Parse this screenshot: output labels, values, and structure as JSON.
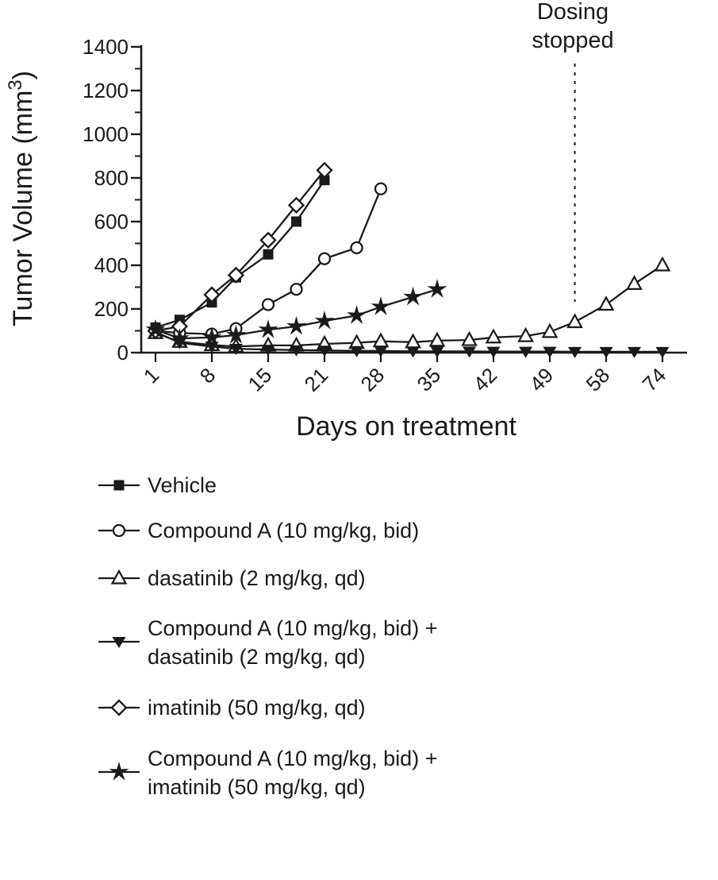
{
  "colors": {
    "ink": "#1a1a1a",
    "background": "#ffffff"
  },
  "chart_data": {
    "type": "line",
    "title": "",
    "xlabel": "Days on treatment",
    "ylabel": "Tumor Volume (mm3)",
    "ylabel_parts": {
      "main": "Tumor Volume (mm",
      "superscript": "3",
      "suffix": ")"
    },
    "x_tick_days": [
      1,
      8,
      15,
      21,
      28,
      35,
      42,
      49,
      58,
      74
    ],
    "x_tick_labels": [
      "1",
      "8",
      "15",
      "21",
      "28",
      "35",
      "42",
      "49",
      "58",
      "74"
    ],
    "y_ticks": [
      0,
      200,
      400,
      600,
      800,
      1000,
      1200,
      1400
    ],
    "y_minor_ticks": [
      100,
      300,
      500,
      700,
      900,
      1100,
      1300
    ],
    "ylim": [
      0,
      1400
    ],
    "grid": "off",
    "legend_position": "below",
    "annotation": {
      "text_lines": [
        "Dosing",
        "stopped"
      ],
      "at_day": 53,
      "line_style": "dashed-vertical"
    },
    "series": [
      {
        "name": "Vehicle",
        "marker": "square-filled",
        "days": [
          1,
          4,
          8,
          11,
          15,
          18,
          21
        ],
        "values": [
          115,
          150,
          230,
          345,
          450,
          600,
          790
        ]
      },
      {
        "name": "Compound A (10 mg/kg, bid)",
        "marker": "circle-open",
        "days": [
          1,
          4,
          8,
          11,
          15,
          18,
          21,
          25,
          28
        ],
        "values": [
          100,
          90,
          85,
          110,
          220,
          290,
          430,
          480,
          750
        ]
      },
      {
        "name": "dasatinib (2 mg/kg, qd)",
        "marker": "triangle-up-open",
        "days": [
          1,
          4,
          8,
          11,
          15,
          18,
          21,
          25,
          28,
          32,
          35,
          39,
          42,
          46,
          49,
          53,
          58,
          66,
          74
        ],
        "values": [
          90,
          50,
          35,
          28,
          33,
          33,
          40,
          45,
          52,
          48,
          55,
          58,
          70,
          76,
          95,
          140,
          220,
          315,
          400
        ]
      },
      {
        "name": "Compound A (10 mg/kg, bid) + dasatinib (2 mg/kg, qd)",
        "marker": "triangle-down-filled",
        "days": [
          1,
          4,
          8,
          11,
          15,
          18,
          21,
          25,
          28,
          32,
          35,
          39,
          42,
          46,
          49,
          53,
          58,
          66,
          74
        ],
        "values": [
          95,
          45,
          28,
          18,
          14,
          12,
          10,
          8,
          8,
          6,
          6,
          6,
          5,
          5,
          5,
          4,
          4,
          4,
          4
        ]
      },
      {
        "name": "imatinib (50 mg/kg, qd)",
        "marker": "diamond-open",
        "days": [
          1,
          4,
          8,
          11,
          15,
          18,
          21
        ],
        "values": [
          100,
          120,
          265,
          355,
          515,
          675,
          835
        ]
      },
      {
        "name": "Compound A (10 mg/kg, bid) + imatinib (50 mg/kg, qd)",
        "marker": "star-filled",
        "days": [
          1,
          4,
          8,
          11,
          15,
          18,
          21,
          25,
          28,
          32,
          35
        ],
        "values": [
          105,
          65,
          70,
          80,
          105,
          120,
          145,
          170,
          210,
          255,
          290
        ]
      }
    ]
  },
  "legend": {
    "items": [
      {
        "marker": "square-filled",
        "lines": [
          "Vehicle"
        ]
      },
      {
        "marker": "circle-open",
        "lines": [
          "Compound A (10 mg/kg, bid)"
        ]
      },
      {
        "marker": "triangle-up-open",
        "lines": [
          "dasatinib (2 mg/kg, qd)"
        ]
      },
      {
        "marker": "triangle-down-filled",
        "lines": [
          "Compound A (10 mg/kg, bid) +",
          "dasatinib (2 mg/kg, qd)"
        ]
      },
      {
        "marker": "diamond-open",
        "lines": [
          "imatinib (50 mg/kg, qd)"
        ]
      },
      {
        "marker": "star-filled",
        "lines": [
          "Compound A (10 mg/kg, bid) +",
          "imatinib (50 mg/kg, qd)"
        ]
      }
    ]
  }
}
